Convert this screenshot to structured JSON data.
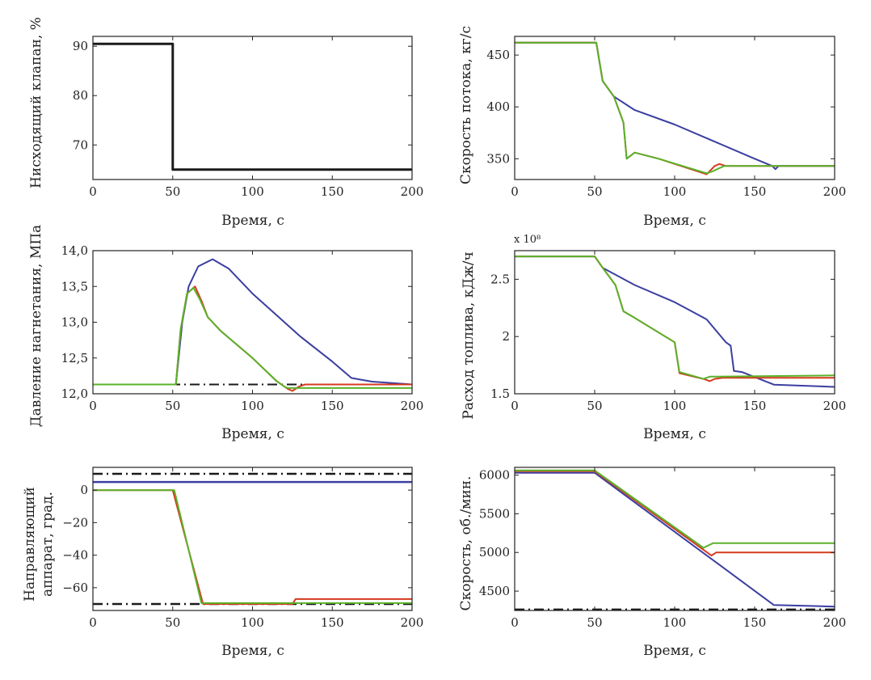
{
  "chart_data": [
    {
      "id": "valve",
      "type": "line",
      "xlabel": "Время, с",
      "ylabel": "Нисходящий клапан, %",
      "xlim": [
        0,
        200
      ],
      "ylim": [
        63,
        92
      ],
      "xticks": [
        0,
        50,
        100,
        150,
        200
      ],
      "yticks": [
        70,
        80,
        90
      ],
      "ytick_labels": [
        "70",
        "80",
        "90"
      ],
      "series": [
        {
          "color": "#1a1a1a",
          "style": "solid",
          "width": 3,
          "points": [
            [
              0,
              90.5
            ],
            [
              50,
              90.5
            ],
            [
              50,
              65
            ],
            [
              200,
              65
            ]
          ]
        }
      ]
    },
    {
      "id": "flow",
      "type": "line",
      "xlabel": "Время, с",
      "ylabel": "Скорость потока, кг/с",
      "xlim": [
        0,
        200
      ],
      "ylim": [
        330,
        468
      ],
      "xticks": [
        0,
        50,
        100,
        150,
        200
      ],
      "yticks": [
        350,
        400,
        450
      ],
      "ytick_labels": [
        "350",
        "400",
        "450"
      ],
      "series": [
        {
          "color": "#3a3fa0",
          "style": "solid",
          "width": 2,
          "points": [
            [
              0,
              462
            ],
            [
              51,
              462
            ],
            [
              55,
              425
            ],
            [
              62,
              410
            ],
            [
              75,
              397
            ],
            [
              100,
              383
            ],
            [
              150,
              350
            ],
            [
              161,
              343
            ],
            [
              163,
              340
            ],
            [
              165,
              343
            ],
            [
              200,
              343
            ]
          ]
        },
        {
          "color": "#d63a1e",
          "style": "solid",
          "width": 2,
          "points": [
            [
              0,
              462
            ],
            [
              51,
              462
            ],
            [
              55,
              425
            ],
            [
              62,
              410
            ],
            [
              68,
              385
            ],
            [
              70,
              350
            ],
            [
              75,
              356
            ],
            [
              90,
              350
            ],
            [
              120,
              335
            ],
            [
              125,
              343
            ],
            [
              128,
              345
            ],
            [
              132,
              343
            ],
            [
              200,
              343
            ]
          ]
        },
        {
          "color": "#5ab22a",
          "style": "solid",
          "width": 2,
          "points": [
            [
              0,
              462
            ],
            [
              51,
              462
            ],
            [
              55,
              425
            ],
            [
              62,
              410
            ],
            [
              68,
              385
            ],
            [
              70,
              350
            ],
            [
              75,
              356
            ],
            [
              90,
              350
            ],
            [
              120,
              336
            ],
            [
              124,
              338
            ],
            [
              128,
              341
            ],
            [
              131,
              343
            ],
            [
              200,
              343
            ]
          ]
        }
      ]
    },
    {
      "id": "pressure",
      "type": "line",
      "xlabel": "Время, с",
      "ylabel": "Давление нагнетания, МПа",
      "xlim": [
        0,
        200
      ],
      "ylim": [
        12.0,
        14.0
      ],
      "xticks": [
        0,
        50,
        100,
        150,
        200
      ],
      "yticks": [
        12.0,
        12.5,
        13.0,
        13.5,
        14.0
      ],
      "ytick_labels": [
        "12,0",
        "12,5",
        "13,0",
        "13,5",
        "14,0"
      ],
      "series": [
        {
          "color": "#1a1a1a",
          "style": "dashdot",
          "width": 2,
          "points": [
            [
              0,
              12.13
            ],
            [
              200,
              12.13
            ]
          ]
        },
        {
          "color": "#3a3fa0",
          "style": "solid",
          "width": 2,
          "points": [
            [
              0,
              12.13
            ],
            [
              52,
              12.13
            ],
            [
              56,
              13.0
            ],
            [
              60,
              13.5
            ],
            [
              66,
              13.78
            ],
            [
              75,
              13.88
            ],
            [
              85,
              13.75
            ],
            [
              100,
              13.4
            ],
            [
              130,
              12.8
            ],
            [
              150,
              12.45
            ],
            [
              162,
              12.22
            ],
            [
              175,
              12.17
            ],
            [
              200,
              12.13
            ]
          ]
        },
        {
          "color": "#d63a1e",
          "style": "solid",
          "width": 2,
          "points": [
            [
              0,
              12.13
            ],
            [
              52,
              12.13
            ],
            [
              55,
              12.9
            ],
            [
              59,
              13.4
            ],
            [
              64,
              13.5
            ],
            [
              68,
              13.3
            ],
            [
              72,
              13.07
            ],
            [
              80,
              12.88
            ],
            [
              100,
              12.5
            ],
            [
              115,
              12.18
            ],
            [
              122,
              12.07
            ],
            [
              125,
              12.04
            ],
            [
              129,
              12.1
            ],
            [
              133,
              12.13
            ],
            [
              200,
              12.13
            ]
          ]
        },
        {
          "color": "#5ab22a",
          "style": "solid",
          "width": 2,
          "points": [
            [
              0,
              12.13
            ],
            [
              52,
              12.13
            ],
            [
              55,
              12.9
            ],
            [
              59,
              13.4
            ],
            [
              63,
              13.48
            ],
            [
              67,
              13.32
            ],
            [
              72,
              13.07
            ],
            [
              80,
              12.88
            ],
            [
              100,
              12.5
            ],
            [
              115,
              12.18
            ],
            [
              120,
              12.1
            ],
            [
              122,
              12.08
            ],
            [
              200,
              12.08
            ]
          ]
        }
      ]
    },
    {
      "id": "fuel",
      "type": "line",
      "xlabel": "Время, с",
      "ylabel": "Расход топлива, кДж/ч",
      "exponent_label": "x 10⁸",
      "xlim": [
        0,
        200
      ],
      "ylim": [
        1.5,
        2.75
      ],
      "xticks": [
        0,
        50,
        100,
        150,
        200
      ],
      "yticks": [
        1.5,
        2.0,
        2.5
      ],
      "ytick_labels": [
        "1.5",
        "2",
        "2.5"
      ],
      "series": [
        {
          "color": "#3a3fa0",
          "style": "solid",
          "width": 2,
          "points": [
            [
              0,
              2.7
            ],
            [
              50,
              2.7
            ],
            [
              55,
              2.6
            ],
            [
              75,
              2.45
            ],
            [
              100,
              2.3
            ],
            [
              120,
              2.15
            ],
            [
              132,
              1.95
            ],
            [
              135,
              1.92
            ],
            [
              137,
              1.7
            ],
            [
              142,
              1.69
            ],
            [
              162,
              1.58
            ],
            [
              200,
              1.56
            ]
          ]
        },
        {
          "color": "#d63a1e",
          "style": "solid",
          "width": 2,
          "points": [
            [
              0,
              2.7
            ],
            [
              50,
              2.7
            ],
            [
              55,
              2.6
            ],
            [
              63,
              2.45
            ],
            [
              68,
              2.22
            ],
            [
              73,
              2.18
            ],
            [
              100,
              1.95
            ],
            [
              103,
              1.68
            ],
            [
              118,
              1.63
            ],
            [
              122,
              1.61
            ],
            [
              125,
              1.63
            ],
            [
              130,
              1.64
            ],
            [
              200,
              1.64
            ]
          ]
        },
        {
          "color": "#5ab22a",
          "style": "solid",
          "width": 2,
          "points": [
            [
              0,
              2.7
            ],
            [
              50,
              2.7
            ],
            [
              55,
              2.6
            ],
            [
              63,
              2.45
            ],
            [
              68,
              2.22
            ],
            [
              73,
              2.18
            ],
            [
              100,
              1.95
            ],
            [
              103,
              1.69
            ],
            [
              118,
              1.63
            ],
            [
              122,
              1.65
            ],
            [
              200,
              1.66
            ]
          ]
        }
      ]
    },
    {
      "id": "igv",
      "type": "line",
      "xlabel": "Время, с",
      "ylabel": "Направляющий аппарат, град.",
      "ylabel_lines": [
        "Направляющий",
        "аппарат, град."
      ],
      "xlim": [
        0,
        200
      ],
      "ylim": [
        -74,
        14
      ],
      "xticks": [
        0,
        50,
        100,
        150,
        200
      ],
      "yticks": [
        -60,
        -40,
        -20,
        0
      ],
      "ytick_labels": [
        "−60",
        "−40",
        "−20",
        "0"
      ],
      "series": [
        {
          "color": "#1a1a1a",
          "style": "dashdot",
          "width": 2.5,
          "points": [
            [
              0,
              10
            ],
            [
              200,
              10
            ]
          ]
        },
        {
          "color": "#1a1a1a",
          "style": "dashdot",
          "width": 2.5,
          "points": [
            [
              0,
              -70
            ],
            [
              200,
              -70
            ]
          ]
        },
        {
          "color": "#3a3fa0",
          "style": "solid",
          "width": 2.5,
          "points": [
            [
              0,
              5
            ],
            [
              200,
              5
            ]
          ]
        },
        {
          "color": "#d63a1e",
          "style": "solid",
          "width": 2,
          "points": [
            [
              0,
              0
            ],
            [
              50,
              0
            ],
            [
              69,
              -70
            ],
            [
              125,
              -70
            ],
            [
              127,
              -67
            ],
            [
              200,
              -67
            ]
          ]
        },
        {
          "color": "#5ab22a",
          "style": "solid",
          "width": 2,
          "points": [
            [
              0,
              0
            ],
            [
              51,
              0
            ],
            [
              68,
              -69.5
            ],
            [
              200,
              -69.5
            ]
          ]
        }
      ]
    },
    {
      "id": "speed",
      "type": "line",
      "xlabel": "Время, с",
      "ylabel": "Скорость, об./мин.",
      "xlim": [
        0,
        200
      ],
      "ylim": [
        4250,
        6100
      ],
      "xticks": [
        0,
        50,
        100,
        150,
        200
      ],
      "yticks": [
        4500,
        5000,
        5500,
        6000
      ],
      "ytick_labels": [
        "4500",
        "5000",
        "5500",
        "6000"
      ],
      "series": [
        {
          "color": "#1a1a1a",
          "style": "dashdot",
          "width": 2,
          "points": [
            [
              0,
              4265
            ],
            [
              200,
              4265
            ]
          ]
        },
        {
          "color": "#3a3fa0",
          "style": "solid",
          "width": 2,
          "points": [
            [
              0,
              6030
            ],
            [
              50,
              6030
            ],
            [
              162,
              4320
            ],
            [
              200,
              4300
            ]
          ]
        },
        {
          "color": "#d63a1e",
          "style": "solid",
          "width": 2,
          "points": [
            [
              0,
              6050
            ],
            [
              50,
              6050
            ],
            [
              123,
              4960
            ],
            [
              126,
              5000
            ],
            [
              200,
              5000
            ]
          ]
        },
        {
          "color": "#5ab22a",
          "style": "solid",
          "width": 2,
          "points": [
            [
              0,
              6060
            ],
            [
              50,
              6060
            ],
            [
              118,
              5060
            ],
            [
              124,
              5120
            ],
            [
              200,
              5120
            ]
          ]
        }
      ]
    }
  ]
}
